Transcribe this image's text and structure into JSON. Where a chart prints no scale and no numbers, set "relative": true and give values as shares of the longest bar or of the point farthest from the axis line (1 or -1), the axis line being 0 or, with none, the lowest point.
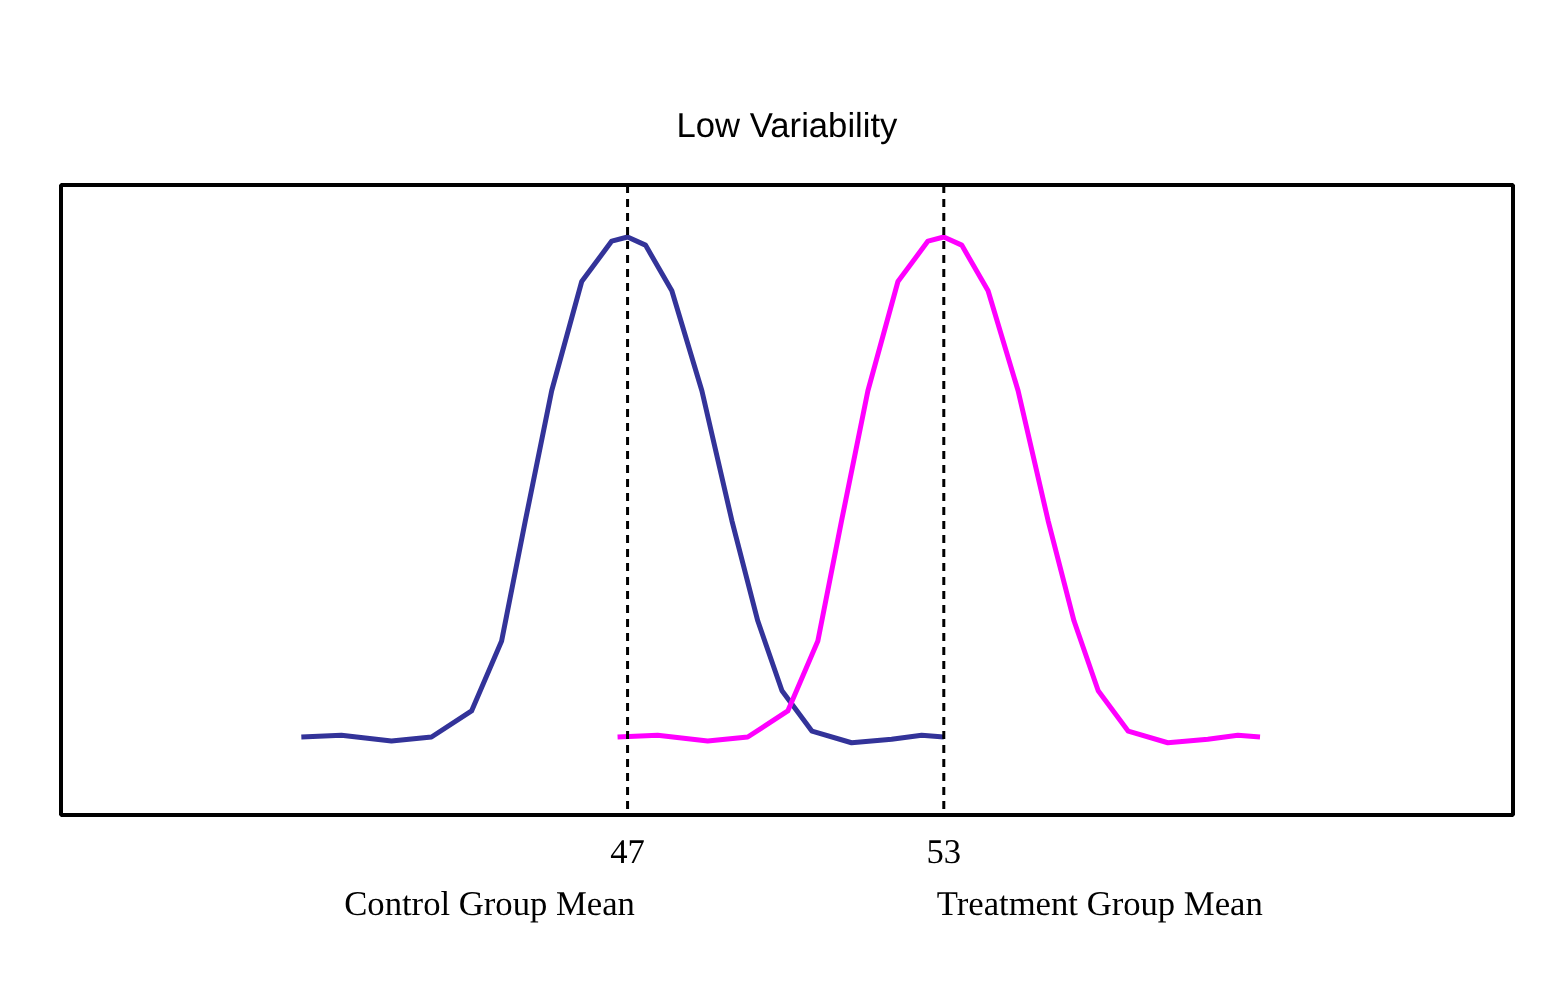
{
  "chart_data": {
    "type": "line",
    "title": "Low Variability",
    "relative": true,
    "xlim": [
      36.25,
      63.8
    ],
    "xticks": [
      47,
      53
    ],
    "grid": false,
    "marker": "none",
    "line_style": "solid",
    "series": [
      {
        "color": "#333399",
        "x": [
          40.81,
          41.57,
          42.52,
          43.28,
          44.04,
          44.61,
          45.06,
          45.56,
          46.13,
          46.7,
          47.0,
          47.34,
          47.84,
          48.41,
          48.98,
          49.47,
          49.93,
          50.5,
          51.25,
          52.01,
          52.58,
          53.0
        ],
        "values": [
          0.135,
          0.138,
          0.128,
          0.135,
          0.18,
          0.301,
          0.509,
          0.734,
          0.923,
          0.993,
          1.0,
          0.986,
          0.907,
          0.734,
          0.509,
          0.336,
          0.215,
          0.145,
          0.125,
          0.131,
          0.138,
          0.135
        ]
      },
      {
        "color": "#ff00ff",
        "x": [
          46.81,
          47.57,
          48.52,
          49.28,
          50.04,
          50.61,
          51.06,
          51.56,
          52.13,
          52.7,
          53.0,
          53.34,
          53.84,
          54.41,
          54.98,
          55.47,
          55.93,
          56.5,
          57.25,
          58.01,
          58.58,
          59.0
        ],
        "values": [
          0.135,
          0.138,
          0.128,
          0.135,
          0.18,
          0.301,
          0.509,
          0.734,
          0.923,
          0.993,
          1.0,
          0.986,
          0.907,
          0.734,
          0.509,
          0.336,
          0.215,
          0.145,
          0.125,
          0.131,
          0.138,
          0.135
        ]
      }
    ],
    "ref_lines": [
      {
        "axis": "x",
        "value": 47,
        "label": "Control Group Mean",
        "color": "#000000",
        "line_style": "dashed"
      },
      {
        "axis": "x",
        "value": 53,
        "label": "Treatment Group Mean",
        "color": "#000000",
        "line_style": "dashed"
      }
    ]
  }
}
